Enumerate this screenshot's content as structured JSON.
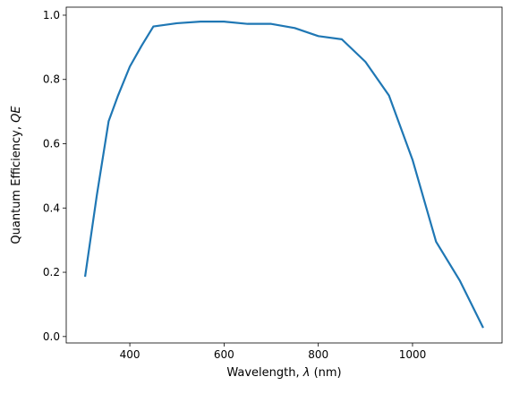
{
  "chart_data": {
    "type": "line",
    "title": "",
    "xlabel_prefix": "Wavelength, ",
    "xlabel_symbol": "λ",
    "xlabel_suffix": " (nm)",
    "ylabel_prefix": "Quantum Efficiency, ",
    "ylabel_symbol": "QE",
    "xlim": [
      265,
      1190
    ],
    "ylim": [
      -0.02,
      1.025
    ],
    "x_ticks": [
      400,
      600,
      800,
      1000
    ],
    "y_ticks": [
      0.0,
      0.2,
      0.4,
      0.6,
      0.8,
      1.0
    ],
    "grid": false,
    "legend": "none",
    "series": [
      {
        "color": "#1f77b4",
        "x": [
          305,
          330,
          355,
          375,
          400,
          425,
          450,
          500,
          550,
          600,
          650,
          700,
          750,
          800,
          850,
          900,
          950,
          1000,
          1050,
          1100,
          1150
        ],
        "y": [
          0.186,
          0.44,
          0.67,
          0.75,
          0.84,
          0.905,
          0.965,
          0.975,
          0.98,
          0.98,
          0.973,
          0.973,
          0.96,
          0.935,
          0.925,
          0.855,
          0.75,
          0.55,
          0.295,
          0.175,
          0.027
        ]
      }
    ]
  }
}
